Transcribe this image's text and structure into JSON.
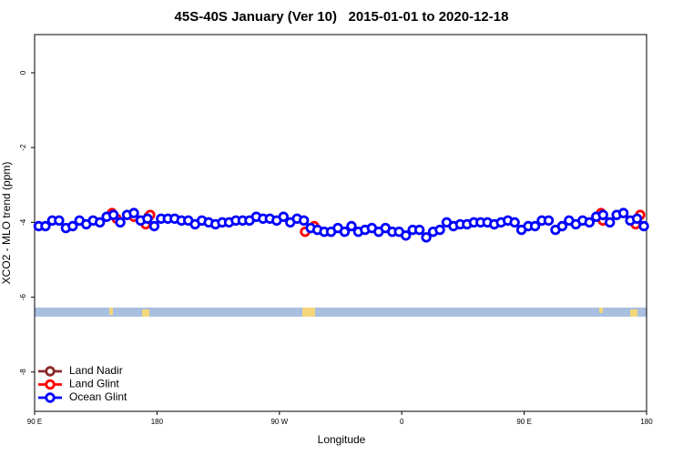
{
  "chart_data": {
    "type": "scatter",
    "title": "45S-40S January (Ver 10)   2015-01-01 to 2020-12-18",
    "x_label": "Longitude",
    "y_label": "XCO2 - MLO trend (ppm)",
    "xlim": [
      90,
      540
    ],
    "ylim": [
      -9.05,
      1.02
    ],
    "xticks": [
      {
        "value": 90,
        "label": "90 E"
      },
      180,
      {
        "value": 270,
        "label": "90 W"
      },
      {
        "value": 360,
        "label": "0"
      },
      {
        "value": 450,
        "label": "90 E"
      },
      {
        "value": 540,
        "label": "180"
      }
    ],
    "yticks": [
      0,
      -2,
      -4,
      -6,
      -8
    ],
    "legend": "bottom-left",
    "series": [
      {
        "name": "Land Nadir",
        "color": "#8b2a2a",
        "x": [
          173.7,
          535.3
        ],
        "values": [
          -3.85,
          -3.8
        ]
      },
      {
        "name": "Land Glint",
        "color": "#ff0000",
        "x": [
          146.9,
          150.3,
          163,
          171.7,
          175,
          288.9,
          295.6,
          506.5,
          507.9,
          532,
          535.3
        ],
        "values": [
          -3.75,
          -3.9,
          -3.85,
          -4.05,
          -3.8,
          -4.25,
          -4.1,
          -3.75,
          -3.95,
          -4.05,
          -3.8
        ]
      },
      {
        "name": "Ocean Glint",
        "color": "#0000ff",
        "x": [
          93,
          98,
          103,
          108,
          113,
          118,
          123,
          128,
          133,
          138,
          143,
          148,
          153,
          158,
          163,
          168,
          173,
          178,
          183,
          188,
          193,
          198,
          203,
          208,
          213,
          218,
          223,
          228,
          233,
          238,
          243,
          248,
          253,
          258,
          263,
          268,
          273,
          278,
          283,
          288,
          293,
          298,
          303,
          308,
          313,
          318,
          323,
          328,
          333,
          338,
          343,
          348,
          353,
          358,
          363,
          368,
          373,
          378,
          383,
          388,
          393,
          398,
          403,
          408,
          413,
          418,
          423,
          428,
          433,
          438,
          443,
          448,
          453,
          458,
          463,
          468,
          473,
          478,
          483,
          488,
          493,
          498,
          503,
          508,
          513,
          518,
          523,
          528,
          533,
          538
        ],
        "values": [
          -4.1,
          -4.1,
          -3.95,
          -3.95,
          -4.15,
          -4.1,
          -3.95,
          -4.05,
          -3.95,
          -4.0,
          -3.85,
          -3.8,
          -4.0,
          -3.8,
          -3.75,
          -3.95,
          -3.9,
          -4.1,
          -3.9,
          -3.9,
          -3.9,
          -3.95,
          -3.95,
          -4.05,
          -3.95,
          -4.0,
          -4.05,
          -4.0,
          -4.0,
          -3.95,
          -3.95,
          -3.95,
          -3.85,
          -3.9,
          -3.9,
          -3.95,
          -3.85,
          -4.0,
          -3.9,
          -3.95,
          -4.15,
          -4.2,
          -4.25,
          -4.25,
          -4.15,
          -4.25,
          -4.1,
          -4.25,
          -4.2,
          -4.15,
          -4.25,
          -4.15,
          -4.25,
          -4.25,
          -4.35,
          -4.2,
          -4.2,
          -4.4,
          -4.25,
          -4.2,
          -4.0,
          -4.1,
          -4.05,
          -4.05,
          -4.0,
          -4.0,
          -4.0,
          -4.05,
          -4.0,
          -3.95,
          -4.0,
          -4.2,
          -4.1,
          -4.1,
          -3.95,
          -3.95,
          -4.2,
          -4.1,
          -3.95,
          -4.05,
          -3.95,
          -4.0,
          -3.85,
          -3.8,
          -4.0,
          -3.8,
          -3.75,
          -3.95,
          -3.9,
          -4.1
        ]
      }
    ]
  }
}
